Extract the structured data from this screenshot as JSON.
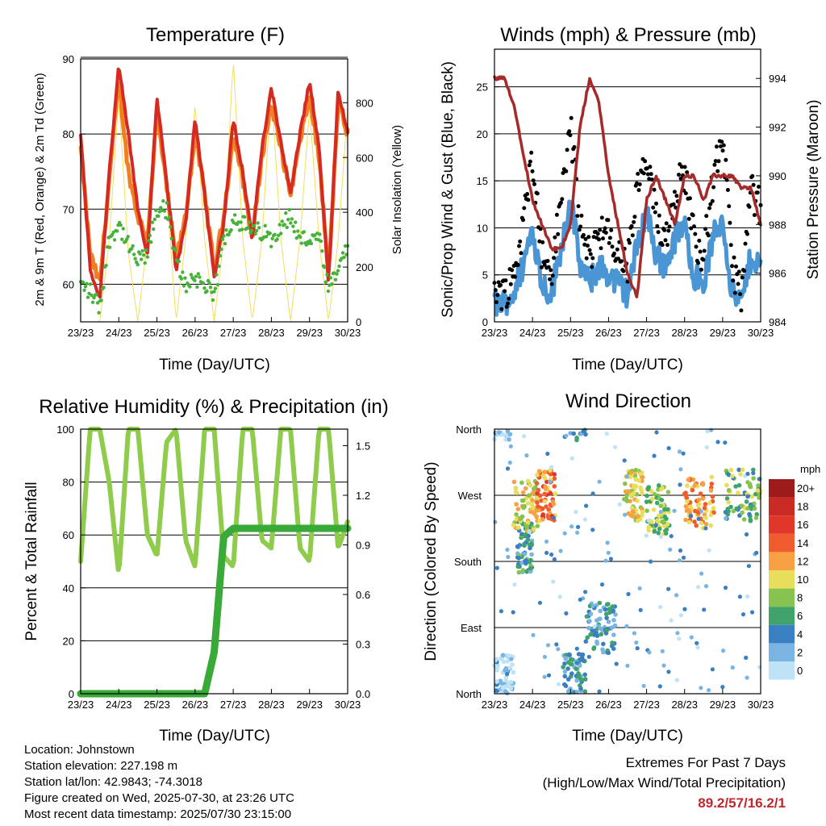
{
  "colors": {
    "t2m": "#d42a22",
    "t9m": "#f07f22",
    "td2m": "#47b23a",
    "solar": "#f2df5a",
    "wind": "#4a95d3",
    "gust": "#000000",
    "pressure": "#a52a2a",
    "rh": "#8fcc4c",
    "precip": "#39aa38"
  },
  "x_ticks": [
    "23/23",
    "24/23",
    "25/23",
    "26/23",
    "27/23",
    "28/23",
    "29/23",
    "30/23"
  ],
  "x_label": "Time (Day/UTC)",
  "panels": {
    "temp": {
      "title": "Temperature (F)",
      "ylabel_left": "2m & 9m T (Red, Orange) & 2m Td (Green)",
      "ylabel_right": "Solar Insolation (Yellow)",
      "y_ticks": [
        "60",
        "70",
        "80",
        "90"
      ],
      "y2_ticks": [
        "0",
        "200",
        "400",
        "600",
        "800"
      ]
    },
    "wind": {
      "title": "Winds (mph) & Pressure (mb)",
      "ylabel_left": "Sonic/Prop Wind & Gust (Blue, Black)",
      "ylabel_right": "Station Pressure (Maroon)",
      "y_ticks": [
        "0",
        "5",
        "10",
        "15",
        "20",
        "25"
      ],
      "y2_ticks": [
        "984",
        "986",
        "988",
        "990",
        "992",
        "994"
      ]
    },
    "rh": {
      "title": "Relative Humidity (%) & Precipitation (in)",
      "ylabel_left": "Percent & Total Rainfall",
      "y_ticks": [
        "0",
        "20",
        "40",
        "60",
        "80",
        "100"
      ],
      "y2_ticks": [
        "0.0",
        "0.3",
        "0.6",
        "0.9",
        "1.2",
        "1.5"
      ]
    },
    "dir": {
      "title": "Wind Direction",
      "ylabel_left": "Direction (Colored By Speed)",
      "y_ticks": [
        "North",
        "East",
        "South",
        "West",
        "North"
      ],
      "legend_unit": "mph",
      "legend_labels": [
        "20+",
        "18",
        "16",
        "14",
        "12",
        "10",
        "8",
        "6",
        "4",
        "2",
        "0"
      ],
      "legend_colors": [
        "#9e1b1b",
        "#c92a24",
        "#e0372a",
        "#f05c2e",
        "#f7a144",
        "#e9de5b",
        "#86c34f",
        "#3fa36b",
        "#3a7fc1",
        "#79b4e2",
        "#bfe3f6"
      ]
    }
  },
  "info": {
    "location": "Location: Johnstown",
    "elevation": "Station elevation: 227.198 m",
    "latlon": "Station lat/lon: 42.9843; -74.3018",
    "created": "Figure created on Wed, 2025-07-30, at 23:26 UTC",
    "latest": "Most recent data timestamp: 2025/07/30 23:15:00"
  },
  "extremes": {
    "title": "Extremes For Past 7 Days",
    "subtitle": "(High/Low/Max Wind/Total Precipitation)",
    "values": "89.2/57/16.2/1"
  },
  "chart_data": [
    {
      "type": "line",
      "title": "Temperature (F)",
      "xlabel": "Time (Day/UTC)",
      "ylabel": "2m & 9m T (Red, Orange) & 2m Td (Green)",
      "y2label": "Solar Insolation (Yellow)",
      "x": [
        0,
        0.25,
        0.5,
        0.75,
        1,
        1.25,
        1.5,
        1.75,
        2,
        2.25,
        2.5,
        2.75,
        3,
        3.25,
        3.5,
        3.75,
        4,
        4.25,
        4.5,
        4.75,
        5,
        5.25,
        5.5,
        5.75,
        6,
        6.25,
        6.5,
        6.75,
        7
      ],
      "xlim": [
        0,
        7
      ],
      "ylim": [
        55,
        90
      ],
      "y2lim": [
        0,
        960
      ],
      "series": [
        {
          "name": "2m T",
          "values": [
            80,
            62,
            58,
            75,
            89,
            80,
            70,
            64,
            85,
            74,
            62,
            68,
            82,
            72,
            61,
            68,
            82,
            75,
            66,
            78,
            86,
            79,
            72,
            80,
            87,
            78,
            60,
            86,
            80
          ]
        },
        {
          "name": "9m T",
          "values": [
            78,
            64,
            60,
            74,
            87,
            75,
            69,
            66,
            83,
            73,
            63,
            69,
            80,
            72,
            62,
            69,
            80,
            74,
            66,
            77,
            84,
            78,
            72,
            79,
            85,
            77,
            61,
            84,
            80
          ]
        },
        {
          "name": "2m Td",
          "values": [
            60,
            59,
            57,
            66,
            68,
            65,
            63,
            64,
            70,
            70,
            63,
            60,
            61,
            60,
            58,
            66,
            69,
            68,
            67,
            67,
            66,
            68,
            69,
            66,
            66,
            66,
            59,
            62,
            65
          ]
        },
        {
          "name": "Solar",
          "values": [
            0,
            0,
            0,
            300,
            820,
            250,
            0,
            300,
            800,
            500,
            0,
            300,
            800,
            300,
            0,
            300,
            960,
            300,
            0,
            300,
            850,
            300,
            0,
            300,
            780,
            300,
            0,
            300,
            780
          ]
        }
      ]
    },
    {
      "type": "line",
      "title": "Winds (mph) & Pressure (mb)",
      "xlabel": "Time (Day/UTC)",
      "ylabel": "Sonic/Prop Wind & Gust (Blue, Black)",
      "y2label": "Station Pressure (Maroon)",
      "x": [
        0,
        0.25,
        0.5,
        0.75,
        1,
        1.25,
        1.5,
        1.75,
        2,
        2.25,
        2.5,
        2.75,
        3,
        3.25,
        3.5,
        3.75,
        4,
        4.25,
        4.5,
        4.75,
        5,
        5.25,
        5.5,
        5.75,
        6,
        6.25,
        6.5,
        6.75,
        7
      ],
      "xlim": [
        0,
        7
      ],
      "ylim": [
        0,
        29
      ],
      "y2lim": [
        984,
        995.2
      ],
      "series": [
        {
          "name": "Wind",
          "values": [
            2,
            2,
            3,
            6,
            10,
            4,
            3,
            8,
            13,
            6,
            4,
            6,
            5,
            4,
            3,
            8,
            12,
            7,
            6,
            9,
            10,
            5,
            4,
            9,
            11,
            3,
            2,
            7,
            6
          ]
        },
        {
          "name": "Gust",
          "values": [
            4,
            3,
            5,
            10,
            18,
            7,
            5,
            13,
            21,
            10,
            7,
            10,
            9,
            7,
            6,
            14,
            17,
            11,
            9,
            14,
            16,
            9,
            7,
            15,
            20,
            6,
            3,
            14,
            12
          ]
        },
        {
          "name": "Pressure",
          "values": [
            994,
            994,
            993,
            991,
            989,
            988,
            987,
            987,
            988,
            992,
            994,
            993,
            990,
            988,
            986,
            985,
            989,
            990,
            989,
            988,
            990,
            990,
            989,
            990,
            990,
            990,
            989.5,
            989.5,
            988
          ]
        }
      ]
    },
    {
      "type": "line",
      "title": "Relative Humidity (%) & Precipitation (in)",
      "xlabel": "Time (Day/UTC)",
      "ylabel": "Percent & Total Rainfall",
      "x": [
        0,
        0.25,
        0.5,
        0.75,
        1,
        1.25,
        1.5,
        1.75,
        2,
        2.25,
        2.5,
        2.75,
        3,
        3.25,
        3.5,
        3.75,
        4,
        4.25,
        4.5,
        4.75,
        5,
        5.25,
        5.5,
        5.75,
        6,
        6.25,
        6.5,
        6.75,
        7
      ],
      "xlim": [
        0,
        7
      ],
      "ylim": [
        0,
        100
      ],
      "y2lim": [
        0,
        1.6
      ],
      "series": [
        {
          "name": "RH",
          "values": [
            50,
            100,
            100,
            80,
            45,
            100,
            100,
            60,
            52,
            95,
            100,
            58,
            48,
            100,
            100,
            52,
            48,
            100,
            100,
            58,
            55,
            100,
            100,
            55,
            50,
            100,
            100,
            55,
            65
          ]
        },
        {
          "name": "Precip",
          "values": [
            0,
            0,
            0,
            0,
            0,
            0,
            0,
            0,
            0,
            0,
            0,
            0,
            0,
            0,
            0.25,
            0.95,
            1.0,
            1.0,
            1.0,
            1.0,
            1.0,
            1.0,
            1.0,
            1.0,
            1.0,
            1.0,
            1.0,
            1.0,
            1.0
          ]
        }
      ]
    },
    {
      "type": "scatter",
      "title": "Wind Direction",
      "xlabel": "Time (Day/UTC)",
      "ylabel": "Direction (Colored By Speed)",
      "xlim": [
        0,
        7
      ],
      "ylim": [
        0,
        360
      ],
      "y_ticks": [
        "North",
        "East",
        "South",
        "West",
        "North"
      ],
      "colorbar": {
        "unit": "mph",
        "levels": [
          "0",
          "2",
          "4",
          "6",
          "8",
          "10",
          "12",
          "14",
          "16",
          "18",
          "20+"
        ]
      },
      "clusters": [
        {
          "x_range": [
            0,
            0.5
          ],
          "dir": 20,
          "speed": 1
        },
        {
          "x_range": [
            0.6,
            1.0
          ],
          "dir": 200,
          "speed": 5
        },
        {
          "x_range": [
            0.5,
            1.2
          ],
          "dir": 255,
          "speed": 10
        },
        {
          "x_range": [
            1.1,
            1.6
          ],
          "dir": 270,
          "speed": 13
        },
        {
          "x_range": [
            1.8,
            2.4
          ],
          "dir": 20,
          "speed": 4
        },
        {
          "x_range": [
            2.4,
            3.2
          ],
          "dir": 90,
          "speed": 4
        },
        {
          "x_range": [
            3.4,
            3.9
          ],
          "dir": 270,
          "speed": 10
        },
        {
          "x_range": [
            4.0,
            4.6
          ],
          "dir": 250,
          "speed": 8
        },
        {
          "x_range": [
            5.0,
            5.8
          ],
          "dir": 260,
          "speed": 12
        },
        {
          "x_range": [
            6.0,
            7.0
          ],
          "dir": 270,
          "speed": 7
        }
      ]
    }
  ]
}
